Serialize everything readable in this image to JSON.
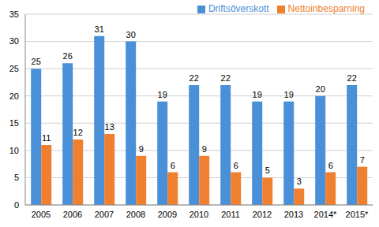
{
  "chart_data": {
    "type": "bar",
    "categories": [
      "2005",
      "2006",
      "2007",
      "2008",
      "2009",
      "2010",
      "2011",
      "2012",
      "2013",
      "2014*",
      "2015*"
    ],
    "series": [
      {
        "name": "Driftsöverskott",
        "color": "#4a90d9",
        "values": [
          25,
          26,
          31,
          30,
          19,
          22,
          22,
          19,
          19,
          20,
          22
        ]
      },
      {
        "name": "Nettoinbesparning",
        "color": "#f07f2f",
        "values": [
          11,
          12,
          13,
          9,
          6,
          9,
          6,
          5,
          3,
          6,
          7
        ]
      }
    ],
    "ylim": [
      0,
      35
    ],
    "yticks": [
      0,
      5,
      10,
      15,
      20,
      25,
      30,
      35
    ],
    "grid": true,
    "legend": "upper right",
    "data_labels": true
  }
}
